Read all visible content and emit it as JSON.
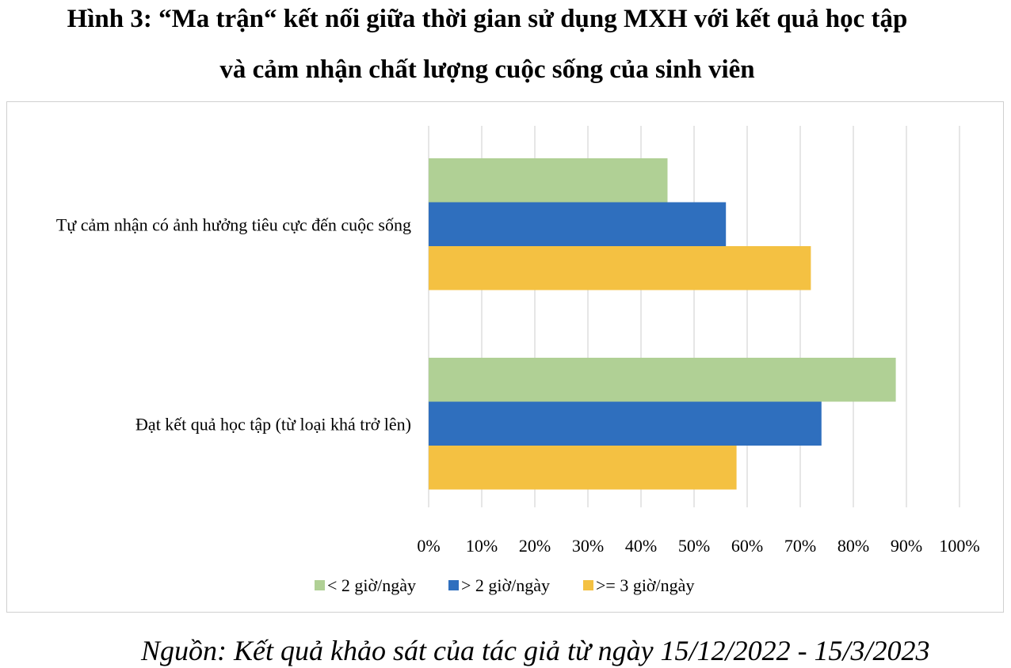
{
  "figure": {
    "title_line1": "Hình 3: “Ma trận“ kết nối giữa thời gian sử dụng MXH với kết quả học tập",
    "title_line2": "và cảm nhận chất lượng cuộc sống của sinh viên",
    "source": "Nguồn: Kết quả khảo sát của tác giả từ ngày 15/12/2022 - 15/3/2023"
  },
  "chart_data": {
    "type": "bar",
    "orientation": "horizontal",
    "categories": [
      "Tự cảm nhận có ảnh hưởng tiêu cực đến cuộc sống",
      "Đạt kết quả học tập (từ loại khá trở lên)"
    ],
    "series": [
      {
        "name": "< 2 giờ/ngày",
        "values": [
          45,
          88
        ],
        "color": "#b0d095"
      },
      {
        "name": "> 2 giờ/ngày",
        "values": [
          56,
          74
        ],
        "color": "#2f6fbe"
      },
      {
        "name": ">= 3 giờ/ngày",
        "values": [
          72,
          58
        ],
        "color": "#f4c142"
      }
    ],
    "x_ticks": [
      "0%",
      "10%",
      "20%",
      "30%",
      "40%",
      "50%",
      "60%",
      "70%",
      "80%",
      "90%",
      "100%"
    ],
    "xlim": [
      0,
      100
    ],
    "unit": "%",
    "grid": true,
    "legend_position": "bottom"
  }
}
